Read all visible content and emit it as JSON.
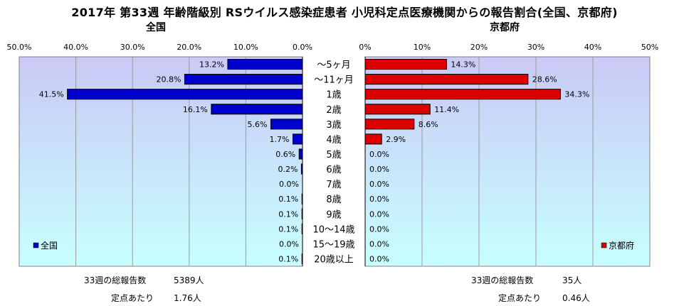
{
  "title": "2017年 第33週 年齢階級別 RSウイルス感染症患者 小児科定点医療機関からの報告割合(全国、京都府)",
  "colors": {
    "national": "#0000CC",
    "kyoto": "#DD0000",
    "plot_bg_top": "#C9C9F5",
    "plot_bg_bottom": "#C8FFFF"
  },
  "chart_data": [
    {
      "type": "bar",
      "title": "全国",
      "orientation": "horizontal-reversed",
      "categories": [
        "～5ヶ月",
        "～11ヶ月",
        "1歳",
        "2歳",
        "3歳",
        "4歳",
        "5歳",
        "6歳",
        "7歳",
        "8歳",
        "9歳",
        "10～14歳",
        "15～19歳",
        "20歳以上"
      ],
      "series": [
        {
          "name": "全国",
          "values": [
            13.2,
            20.8,
            41.5,
            16.1,
            5.6,
            1.7,
            0.6,
            0.2,
            0.0,
            0.1,
            0.1,
            0.1,
            0.0,
            0.1
          ]
        }
      ],
      "value_labels": [
        "13.2%",
        "20.8%",
        "41.5%",
        "16.1%",
        "5.6%",
        "1.7%",
        "0.6%",
        "0.2%",
        "0.0%",
        "0.1%",
        "0.1%",
        "0.1%",
        "0.0%",
        "0.1%"
      ],
      "xlim": [
        0,
        50
      ],
      "ticks": [
        "50.0%",
        "40.0%",
        "30.0%",
        "20.0%",
        "10.0%",
        "0.0%"
      ],
      "grid": true,
      "legend": "bottom-left"
    },
    {
      "type": "bar",
      "title": "京都府",
      "orientation": "horizontal",
      "categories": [
        "～5ヶ月",
        "～11ヶ月",
        "1歳",
        "2歳",
        "3歳",
        "4歳",
        "5歳",
        "6歳",
        "7歳",
        "8歳",
        "9歳",
        "10～14歳",
        "15～19歳",
        "20歳以上"
      ],
      "series": [
        {
          "name": "京都府",
          "values": [
            14.3,
            28.6,
            34.3,
            11.4,
            8.6,
            2.9,
            0.0,
            0.0,
            0.0,
            0.0,
            0.0,
            0.0,
            0.0,
            0.0
          ]
        }
      ],
      "value_labels": [
        "14.3%",
        "28.6%",
        "34.3%",
        "11.4%",
        "8.6%",
        "2.9%",
        "0.0%",
        "0.0%",
        "0.0%",
        "0.0%",
        "0.0%",
        "0.0%",
        "0.0%",
        "0.0%"
      ],
      "xlim": [
        0,
        50
      ],
      "ticks": [
        "0%",
        "10%",
        "20%",
        "30%",
        "40%",
        "50%"
      ],
      "grid": true,
      "legend": "bottom-right"
    }
  ],
  "notes": {
    "national": {
      "total_label": "33週の総報告数",
      "total_value": "5389人",
      "per_label": "定点あたり",
      "per_value": "1.76人"
    },
    "kyoto": {
      "total_label": "33週の総報告数",
      "total_value": "35人",
      "per_label": "定点あたり",
      "per_value": "0.46人"
    }
  }
}
